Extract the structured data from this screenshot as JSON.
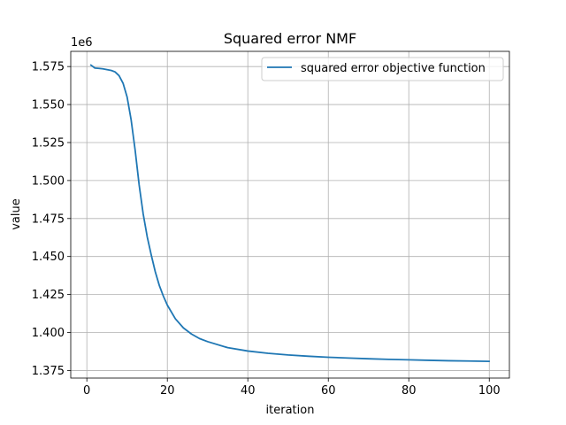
{
  "chart_data": {
    "type": "line",
    "title": "Squared error NMF",
    "xlabel": "iteration",
    "ylabel": "value",
    "y_offset_label": "1e6",
    "xlim": [
      -4,
      105
    ],
    "ylim": [
      1370000,
      1585000
    ],
    "x_ticks": [
      0,
      20,
      40,
      60,
      80,
      100
    ],
    "y_ticks": [
      1375000,
      1400000,
      1425000,
      1450000,
      1475000,
      1500000,
      1525000,
      1550000,
      1575000
    ],
    "y_tick_labels": [
      "1.375",
      "1.400",
      "1.425",
      "1.450",
      "1.475",
      "1.500",
      "1.525",
      "1.550",
      "1.575"
    ],
    "grid": true,
    "legend_position": "top-right",
    "series": [
      {
        "name": "squared error objective function",
        "color": "#1f77b4",
        "x": [
          1,
          2,
          3,
          4,
          5,
          6,
          7,
          8,
          9,
          10,
          11,
          12,
          13,
          14,
          15,
          16,
          17,
          18,
          19,
          20,
          22,
          24,
          26,
          28,
          30,
          35,
          40,
          45,
          50,
          55,
          60,
          65,
          70,
          75,
          80,
          85,
          90,
          95,
          100
        ],
        "y": [
          1576000,
          1574000,
          1573800,
          1573500,
          1573000,
          1572500,
          1571500,
          1569000,
          1564000,
          1555000,
          1540000,
          1520000,
          1497000,
          1478000,
          1463000,
          1451000,
          1440000,
          1431000,
          1424000,
          1418000,
          1409000,
          1403000,
          1399000,
          1396000,
          1394000,
          1390000,
          1387800,
          1386300,
          1385200,
          1384400,
          1383700,
          1383200,
          1382700,
          1382300,
          1382000,
          1381700,
          1381400,
          1381200,
          1381000
        ]
      }
    ]
  }
}
